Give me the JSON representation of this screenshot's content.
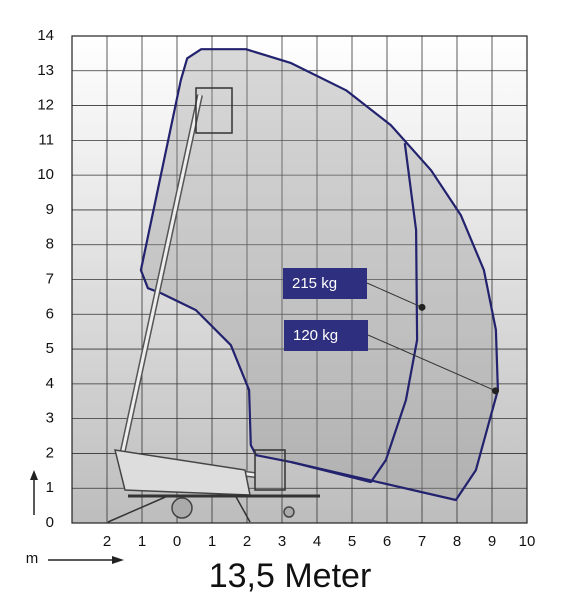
{
  "chart_data": {
    "type": "range-diagram",
    "title": "13,5 Meter",
    "x_unit": "m",
    "xlim": [
      -3,
      10
    ],
    "ylim": [
      0,
      14
    ],
    "xticks": [
      {
        "value": -2,
        "label": "2"
      },
      {
        "value": -1,
        "label": "1"
      },
      0,
      1,
      2,
      3,
      4,
      5,
      6,
      7,
      8,
      9,
      10
    ],
    "yticks": [
      0,
      1,
      2,
      3,
      4,
      5,
      6,
      7,
      8,
      9,
      10,
      11,
      12,
      13,
      14
    ],
    "grid": true,
    "series": [
      {
        "color": "#22226e",
        "x": [
          3.26,
          7.97,
          8.54,
          9.17,
          9.11,
          8.77,
          8.11,
          7.26,
          6.11,
          4.83,
          3.26,
          1.97,
          0.69,
          0.29,
          0.11,
          -1.03,
          -0.83,
          -0.46,
          0.54,
          1.54,
          2.06,
          2.11,
          2.26,
          3.26
        ],
        "values": [
          1.75,
          0.66,
          1.52,
          3.82,
          5.55,
          7.27,
          8.85,
          10.14,
          11.44,
          12.44,
          13.22,
          13.62,
          13.62,
          13.36,
          12.73,
          7.27,
          6.75,
          6.61,
          6.12,
          5.11,
          3.82,
          2.24,
          1.95,
          1.75
        ]
      },
      {
        "color": "#22226e",
        "x": [
          6.51,
          6.83,
          6.86,
          6.54,
          5.97,
          5.54,
          3.26
        ],
        "values": [
          10.92,
          8.42,
          5.26,
          3.53,
          1.81,
          1.18,
          1.75
        ]
      }
    ],
    "annotations": [
      {
        "text": "215 kg",
        "x": 7,
        "y": 6.2
      },
      {
        "text": "120 kg",
        "x": 9.1,
        "y": 3.8
      }
    ]
  }
}
